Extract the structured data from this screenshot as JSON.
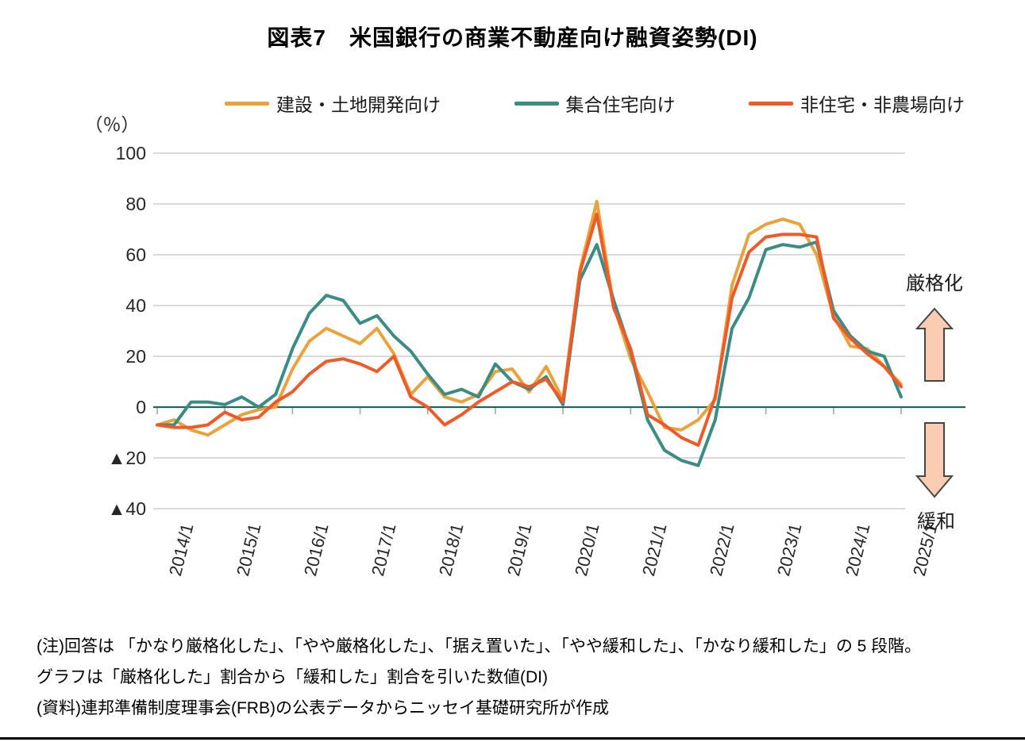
{
  "title": "図表7　米国銀行の商業不動産向け融資姿勢(DI)",
  "y_axis": {
    "unit_label": "（％）",
    "tick_labels": [
      "100",
      "80",
      "60",
      "40",
      "20",
      "0",
      "▲20",
      "▲40"
    ],
    "tick_values": [
      100,
      80,
      60,
      40,
      20,
      0,
      -20,
      -40
    ]
  },
  "x_axis": {
    "tick_labels": [
      "2014/1",
      "2015/1",
      "2016/1",
      "2017/1",
      "2018/1",
      "2019/1",
      "2020/1",
      "2021/1",
      "2022/1",
      "2023/1",
      "2024/1",
      "2025/1"
    ]
  },
  "legend": {
    "items": [
      {
        "label": "建設・土地開発向け",
        "color": "#E8A33D"
      },
      {
        "label": "集合住宅向け",
        "color": "#3A8C84"
      },
      {
        "label": "非住宅・非農場向け",
        "color": "#F05A28"
      }
    ]
  },
  "annotations": {
    "tighten": "厳格化",
    "ease": "緩和",
    "arrow_fill": "#FACDB2",
    "arrow_stroke": "#454545"
  },
  "notes": {
    "line1": "(注)回答は 「かなり厳格化した」、「やや厳格化した」、「据え置いた」、「やや緩和した」、「かなり緩和した」の 5 段階。",
    "line2": "グラフは「厳格化した」割合から「緩和した」割合を引いた数値(DI)",
    "line3": "(資料)連邦準備制度理事会(FRB)の公表データからニッセイ基礎研究所が作成"
  },
  "colors": {
    "grid": "#D9D9D9",
    "zero_line": "#21655E",
    "tick": "#A6A6A6"
  },
  "chart_data": {
    "type": "line",
    "title": "図表7　米国銀行の商業不動産向け融資姿勢(DI)",
    "ylabel": "（％）",
    "ylim": [
      -40,
      100
    ],
    "grid": true,
    "legend_position": "top",
    "frequency": "quarterly",
    "x_start": "2014Q1",
    "x_end": "2025Q1",
    "x_tick_labels": [
      "2014/1",
      "2015/1",
      "2016/1",
      "2017/1",
      "2018/1",
      "2019/1",
      "2020/1",
      "2021/1",
      "2022/1",
      "2023/1",
      "2024/1",
      "2025/1"
    ],
    "series": [
      {
        "name": "建設・土地開発向け",
        "color": "#E8A33D",
        "values": [
          -7,
          -5,
          -9,
          -11,
          -7,
          -3,
          -1,
          0,
          15,
          26,
          31,
          28,
          25,
          31,
          21,
          5,
          12,
          4,
          2,
          5,
          14,
          15,
          6,
          16,
          3,
          54,
          81,
          40,
          19,
          6,
          -8,
          -9,
          -5,
          3,
          48,
          68,
          72,
          74,
          72,
          60,
          36,
          24,
          23,
          16,
          9
        ]
      },
      {
        "name": "集合住宅向け",
        "color": "#3A8C84",
        "values": [
          -7,
          -7,
          2,
          2,
          1,
          4,
          0,
          5,
          23,
          37,
          44,
          42,
          33,
          36,
          28,
          22,
          13,
          5,
          7,
          4,
          17,
          10,
          7,
          12,
          1,
          50,
          64,
          42,
          22,
          -5,
          -17,
          -21,
          -23,
          -5,
          31,
          43,
          62,
          64,
          63,
          65,
          38,
          28,
          22,
          20,
          4
        ]
      },
      {
        "name": "非住宅・非農場向け",
        "color": "#F05A28",
        "values": [
          -7,
          -8,
          -8,
          -7,
          -2,
          -5,
          -4,
          2,
          6,
          13,
          18,
          19,
          17,
          14,
          20,
          4,
          0,
          -7,
          -3,
          2,
          6,
          10,
          8,
          11,
          2,
          53,
          76,
          39,
          23,
          -3,
          -7,
          -12,
          -15,
          4,
          43,
          61,
          67,
          68,
          68,
          67,
          35,
          27,
          21,
          16,
          8
        ]
      }
    ]
  }
}
